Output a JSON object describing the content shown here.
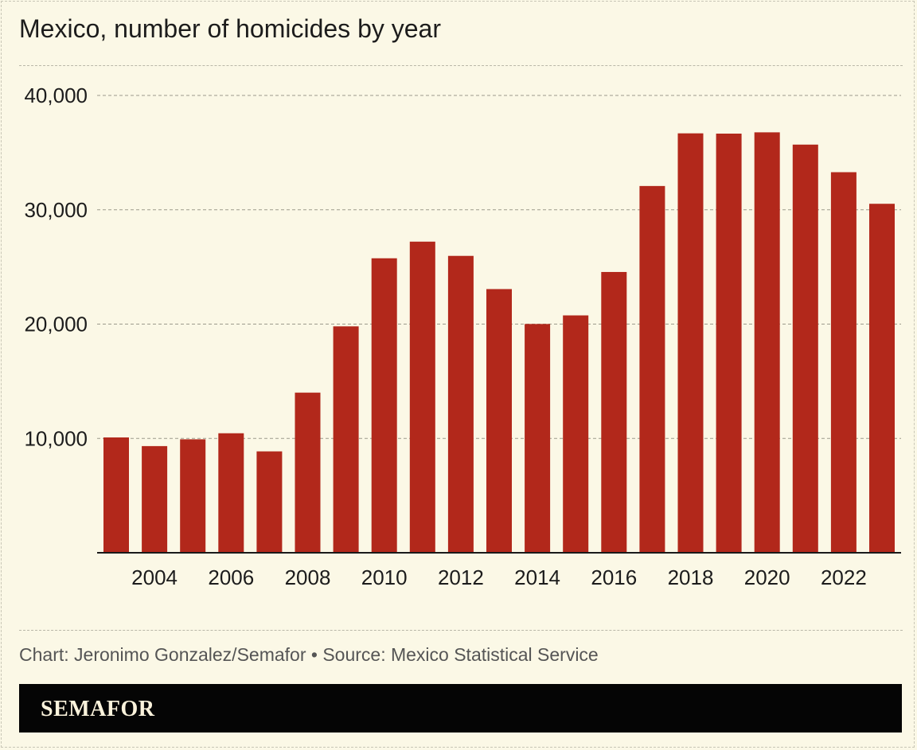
{
  "page": {
    "title": "Mexico, number of homicides by year",
    "credit": "Chart: Jeronimo Gonzalez/Semafor • Source: Mexico Statistical Service",
    "brand": "SEMAFOR"
  },
  "colors": {
    "background": "#fbf8e6",
    "bar": "#b2281b",
    "brand_bar": "#050505",
    "brand_text": "#fbf3dc"
  },
  "chart_data": {
    "type": "bar",
    "title": "Mexico, number of homicides by year",
    "xlabel": "",
    "ylabel": "",
    "categories": [
      2003,
      2004,
      2005,
      2006,
      2007,
      2008,
      2009,
      2010,
      2011,
      2012,
      2013,
      2014,
      2015,
      2016,
      2017,
      2018,
      2019,
      2020,
      2021,
      2022,
      2023
    ],
    "values": [
      10087,
      9329,
      9921,
      10452,
      8867,
      14006,
      19803,
      25757,
      27213,
      25967,
      23063,
      20010,
      20762,
      24559,
      32079,
      36685,
      36661,
      36773,
      35700,
      33287,
      30523
    ],
    "x_ticks": [
      "2004",
      "2006",
      "2008",
      "2010",
      "2012",
      "2014",
      "2016",
      "2018",
      "2020",
      "2022"
    ],
    "x_tick_years": [
      2004,
      2006,
      2008,
      2010,
      2012,
      2014,
      2016,
      2018,
      2020,
      2022
    ],
    "y_ticks": [
      10000,
      20000,
      30000,
      40000
    ],
    "y_tick_labels": [
      "10,000",
      "20,000",
      "30,000",
      "40,000"
    ],
    "ylim": [
      0,
      40000
    ],
    "grid": true,
    "legend": "none"
  }
}
